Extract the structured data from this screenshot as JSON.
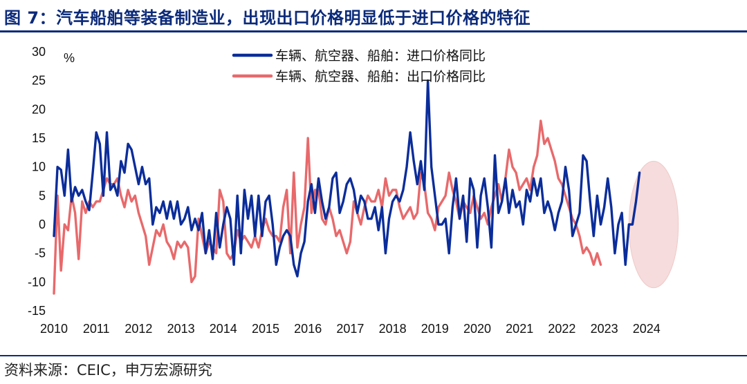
{
  "title": "图 7：汽车船舶等装备制造业，出现出口价格明显低于进口价格的特征",
  "source": "资料来源：CEIC，申万宏源研究",
  "colors": {
    "title": "#0b2a7a",
    "import": "#0b2d9a",
    "export": "#e8696b",
    "highlight": "#f6dcdc"
  },
  "chart_data": {
    "type": "line",
    "ylabel": "%",
    "ylim": [
      -15,
      30
    ],
    "yticks": [
      30,
      25,
      20,
      15,
      10,
      5,
      0,
      -5,
      -10,
      -15
    ],
    "xticks": [
      "2010",
      "2011",
      "2012",
      "2013",
      "2014",
      "2015",
      "2016",
      "2017",
      "2018",
      "2019",
      "2020",
      "2021",
      "2022",
      "2023",
      "2024"
    ],
    "legend_position": "top-center",
    "highlight": {
      "shape": "ellipse",
      "x_range": [
        "2023-08",
        "2024-10"
      ],
      "y_range": [
        -11,
        11
      ]
    },
    "series": [
      {
        "name": "车辆、航空器、船舶：进口价格同比",
        "color": "#0b2d9a",
        "start": "2010-01",
        "frequency": "monthly",
        "values": [
          -2,
          10,
          9.5,
          5,
          13,
          4,
          6.5,
          5,
          6,
          4,
          2.5,
          9,
          16,
          14,
          5,
          16,
          6,
          7,
          5,
          11,
          9,
          14,
          13,
          10,
          7,
          10,
          7,
          8,
          0,
          3,
          2,
          4,
          1,
          4,
          1,
          4,
          0,
          1,
          3,
          -1,
          1,
          -1,
          2,
          -5,
          -1,
          -6,
          2,
          -4,
          0,
          3,
          1,
          -7,
          5,
          -5,
          6,
          1,
          5,
          -2,
          5,
          -2,
          4,
          5,
          0,
          -7,
          -4,
          -2,
          -1,
          -2,
          -7,
          -9,
          -5,
          -3,
          4,
          7,
          2,
          8,
          4,
          1,
          3,
          8,
          9,
          2,
          4,
          7,
          8,
          6,
          2,
          5,
          4,
          1,
          1,
          3,
          -1,
          3,
          -5,
          1,
          4,
          5,
          4,
          6,
          10,
          16,
          11,
          7,
          11,
          6,
          25,
          10,
          5,
          0,
          0,
          1,
          -5,
          3,
          8,
          1,
          5,
          -3,
          8,
          6,
          -4,
          5,
          8,
          3,
          -4,
          12,
          2,
          4,
          8,
          2,
          6,
          3,
          4,
          0,
          6,
          4,
          8,
          5,
          8,
          2,
          4,
          2,
          -1,
          2,
          4,
          10,
          6,
          -2,
          0,
          2,
          12,
          11,
          4,
          -2,
          5,
          0,
          3,
          8,
          3,
          -5,
          0,
          2,
          -7,
          0,
          0,
          4,
          9
        ]
      },
      {
        "name": "车辆、航空器、船舶：出口价格同比",
        "color": "#e8696b",
        "start": "2010-01",
        "frequency": "monthly",
        "values": [
          -12,
          5,
          -8,
          0,
          -1,
          5,
          2,
          -6,
          4,
          2,
          4,
          3,
          4,
          4,
          6,
          8,
          7,
          7,
          8,
          5,
          3,
          6,
          4,
          5,
          2,
          0,
          -2,
          -7,
          -4,
          -1,
          -2,
          0,
          -3,
          -4,
          -6,
          -3,
          -4,
          -3,
          -4,
          -10,
          -9,
          1,
          -2,
          -5,
          -3,
          -4,
          -5,
          6,
          4,
          -5,
          -6,
          -5,
          -1,
          -3,
          -2,
          -3,
          -4,
          -2,
          -4,
          -1,
          1,
          -1,
          -2,
          -2,
          -3,
          3,
          6,
          -5,
          9,
          -4,
          0,
          3,
          15,
          2,
          6,
          6,
          1,
          0,
          3,
          1,
          -2,
          -1,
          -3,
          -5,
          -3,
          4,
          2,
          0,
          3,
          5,
          4,
          4,
          6,
          3,
          8,
          5,
          6,
          6,
          3,
          1,
          2,
          3,
          1,
          2,
          9,
          7,
          2,
          1,
          -1,
          3,
          4,
          5,
          9,
          6,
          4,
          1,
          4,
          3,
          2,
          5,
          3,
          1,
          2,
          0,
          3,
          5,
          7,
          4,
          8,
          13,
          10,
          9,
          6,
          7,
          8,
          6,
          10,
          12,
          18,
          14,
          15,
          13,
          11,
          8,
          7,
          5,
          3,
          1,
          0,
          -2,
          -5,
          -4,
          -5,
          -7,
          -5,
          -7
        ]
      }
    ]
  }
}
